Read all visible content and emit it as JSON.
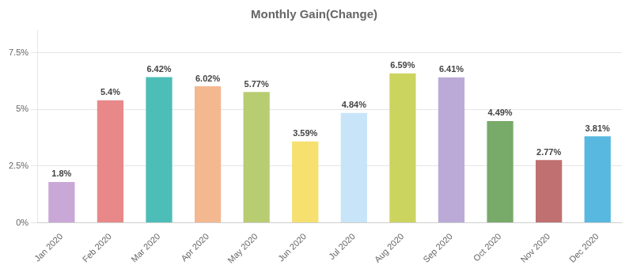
{
  "chart_data": {
    "type": "bar",
    "title": "Monthly Gain(Change)",
    "categories": [
      "Jan 2020",
      "Feb 2020",
      "Mar 2020",
      "Apr 2020",
      "May 2020",
      "Jun 2020",
      "Jul 2020",
      "Aug 2020",
      "Sep 2020",
      "Oct 2020",
      "Nov 2020",
      "Dec 2020"
    ],
    "values": [
      1.8,
      5.4,
      6.42,
      6.02,
      5.77,
      3.59,
      4.84,
      6.59,
      6.41,
      4.49,
      2.77,
      3.81
    ],
    "value_labels": [
      "1.8%",
      "5.4%",
      "6.42%",
      "6.02%",
      "5.77%",
      "3.59%",
      "4.84%",
      "6.59%",
      "6.41%",
      "4.49%",
      "2.77%",
      "3.81%"
    ],
    "colors": [
      "#c9a8d8",
      "#e88888",
      "#4dbdb8",
      "#f4b890",
      "#b8cc72",
      "#f5e070",
      "#c8e4f8",
      "#ccd460",
      "#bbaad8",
      "#78aa6a",
      "#c07070",
      "#58b8e0"
    ],
    "ylim": [
      0,
      8.5
    ],
    "yticks": [
      {
        "value": 0,
        "label": "0%"
      },
      {
        "value": 2.5,
        "label": "2.5%"
      },
      {
        "value": 5,
        "label": "5%"
      },
      {
        "value": 7.5,
        "label": "7.5%"
      }
    ],
    "grid": true,
    "data_labels": true
  }
}
